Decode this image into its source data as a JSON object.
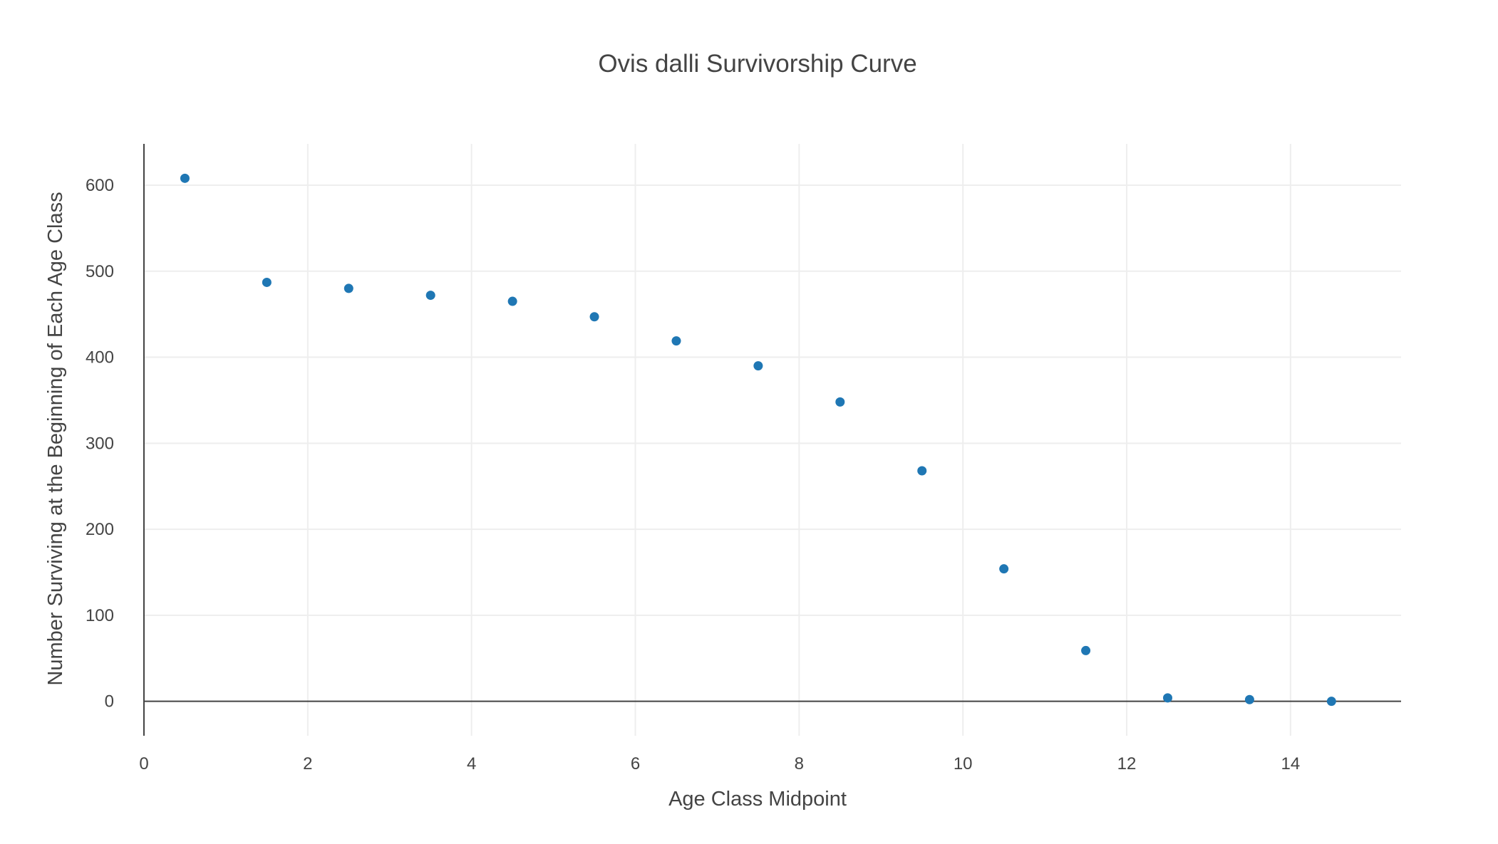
{
  "chart_data": {
    "type": "scatter",
    "title": "Ovis dalli Survivorship Curve",
    "xlabel": "Age Class Midpoint",
    "ylabel": "Number Surviving at the Beginning of Each Age Class",
    "xlim": [
      0,
      15.35
    ],
    "ylim": [
      -40,
      648
    ],
    "xticks": [
      0,
      2,
      4,
      6,
      8,
      10,
      12,
      14
    ],
    "yticks": [
      0,
      100,
      200,
      300,
      400,
      500,
      600
    ],
    "grid": true,
    "legend": "none",
    "marker_color": "#1f77b4",
    "series": [
      {
        "x": [
          0.5,
          1.5,
          2.5,
          3.5,
          4.5,
          5.5,
          6.5,
          7.5,
          8.5,
          9.5,
          10.5,
          11.5,
          12.5,
          13.5,
          14.5
        ],
        "y": [
          608,
          487,
          480,
          472,
          465,
          447,
          419,
          390,
          348,
          268,
          154,
          59,
          4,
          2,
          0
        ]
      }
    ]
  }
}
